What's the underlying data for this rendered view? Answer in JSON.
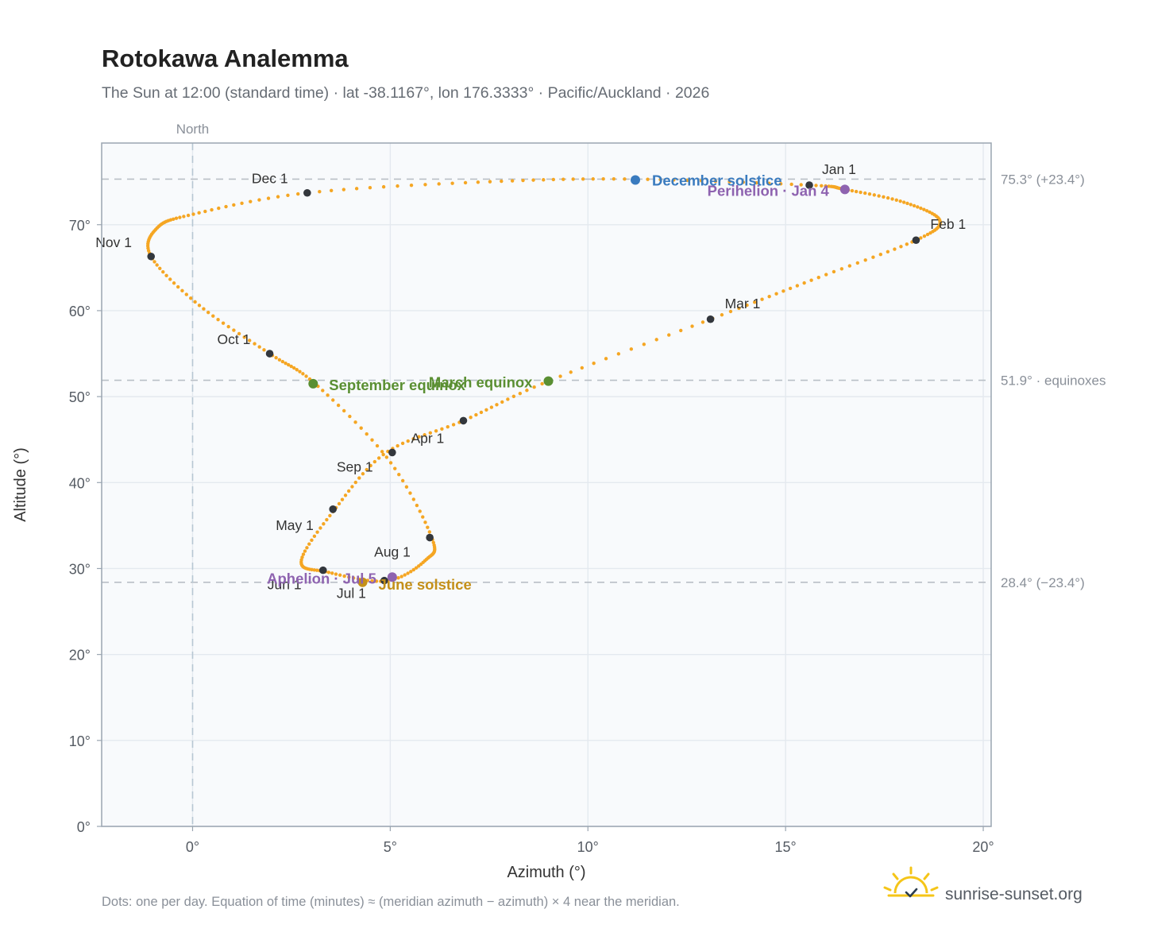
{
  "chart_data": {
    "type": "scatter",
    "title": "Rotokawa Analemma",
    "subtitle": "The Sun at 12:00 (standard time) · lat -38.1167°, lon 176.3333° · Pacific/Auckland · 2026",
    "xlabel": "Azimuth (°)",
    "ylabel": "Altitude (°)",
    "xlim": [
      -2.3,
      20.2
    ],
    "ylim": [
      0,
      79.5
    ],
    "x_ticks": [
      {
        "value": 0,
        "label": "0°"
      },
      {
        "value": 5,
        "label": "5°"
      },
      {
        "value": 10,
        "label": "10°"
      },
      {
        "value": 15,
        "label": "15°"
      },
      {
        "value": 20,
        "label": "20°"
      }
    ],
    "y_ticks": [
      {
        "value": 0,
        "label": "0°"
      },
      {
        "value": 10,
        "label": "10°"
      },
      {
        "value": 20,
        "label": "20°"
      },
      {
        "value": 30,
        "label": "30°"
      },
      {
        "value": 40,
        "label": "40°"
      },
      {
        "value": 50,
        "label": "50°"
      },
      {
        "value": 60,
        "label": "60°"
      },
      {
        "value": 70,
        "label": "70°"
      }
    ],
    "grid": true,
    "north_line": {
      "x": 0,
      "label": "North"
    },
    "reference_lines": [
      {
        "y": 75.3,
        "label": "75.3° (+23.4°)"
      },
      {
        "y": 51.9,
        "label": "51.9° · equinoxes"
      },
      {
        "y": 28.4,
        "label": "28.4° (−23.4°)"
      }
    ],
    "path_knots": [
      [
        15.6,
        74.6
      ],
      [
        16.5,
        74.1
      ],
      [
        18.0,
        72.6
      ],
      [
        18.9,
        70.5
      ],
      [
        18.3,
        68.2
      ],
      [
        15.8,
        63.8
      ],
      [
        13.1,
        59.0
      ],
      [
        9.0,
        51.8
      ],
      [
        6.85,
        47.2
      ],
      [
        4.9,
        43.5
      ],
      [
        3.6,
        36.9
      ],
      [
        2.75,
        30.9
      ],
      [
        3.4,
        29.6
      ],
      [
        4.9,
        28.55
      ],
      [
        5.9,
        31.0
      ],
      [
        6.05,
        33.6
      ],
      [
        4.95,
        42.7
      ],
      [
        3.1,
        51.5
      ],
      [
        1.95,
        55.0
      ],
      [
        0.2,
        60.5
      ],
      [
        -1.05,
        66.3
      ],
      [
        -0.9,
        69.6
      ],
      [
        0.0,
        71.2
      ],
      [
        2.9,
        73.7
      ],
      [
        7.5,
        75.0
      ],
      [
        11.2,
        75.3
      ],
      [
        15.6,
        74.6
      ]
    ],
    "month_markers": [
      {
        "label": "Jan 1",
        "x": 15.6,
        "y": 74.6
      },
      {
        "label": "Feb 1",
        "x": 18.3,
        "y": 68.2
      },
      {
        "label": "Mar 1",
        "x": 13.1,
        "y": 59.0
      },
      {
        "label": "Apr 1",
        "x": 6.85,
        "y": 47.2
      },
      {
        "label": "May 1",
        "x": 3.55,
        "y": 36.9
      },
      {
        "label": "Jun 1",
        "x": 3.3,
        "y": 29.8
      },
      {
        "label": "Jul 1",
        "x": 4.85,
        "y": 28.6
      },
      {
        "label": "Aug 1",
        "x": 6.0,
        "y": 33.6
      },
      {
        "label": "Sep 1",
        "x": 5.05,
        "y": 43.5
      },
      {
        "label": "Oct 1",
        "x": 1.95,
        "y": 55.0
      },
      {
        "label": "Nov 1",
        "x": -1.05,
        "y": 66.3
      },
      {
        "label": "Dec 1",
        "x": 2.9,
        "y": 73.7
      }
    ],
    "events": [
      {
        "label": "December solstice",
        "x": 11.2,
        "y": 75.2,
        "color": "#3a7bbf"
      },
      {
        "label": "Perihelion · Jan 4",
        "x": 16.5,
        "y": 74.1,
        "color": "#8e63b0"
      },
      {
        "label": "March equinox",
        "x": 9.0,
        "y": 51.8,
        "color": "#5a8f32"
      },
      {
        "label": "September equinox",
        "x": 3.05,
        "y": 51.5,
        "color": "#5a8f32"
      },
      {
        "label": "June solstice",
        "x": 4.3,
        "y": 28.4,
        "color": "#c49019"
      },
      {
        "label": "Aphelion · Jul 5",
        "x": 5.05,
        "y": 29.0,
        "color": "#8e63b0"
      }
    ],
    "colors": {
      "daily_dot": "#f5a623",
      "month_dot": "#33373d",
      "grid": "#e4e9ef",
      "reference_line": "#b9bfc6",
      "plot_background": "#f8fafc",
      "frame": "#9aa5b1"
    },
    "footnote": "Dots: one per day. Equation of time (minutes) ≈ (meridian azimuth − azimuth) × 4 near the meridian.",
    "brand": "sunrise-sunset.org"
  }
}
